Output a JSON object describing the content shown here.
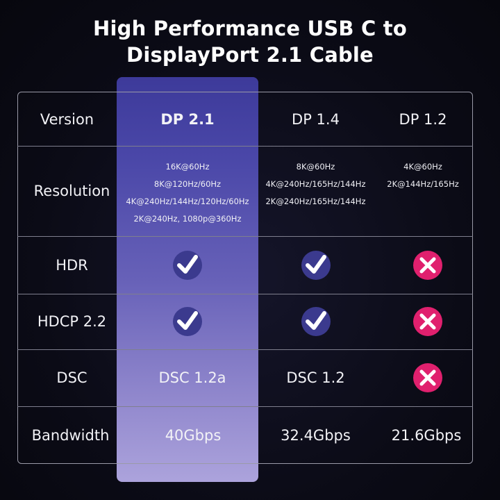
{
  "title": {
    "line1": "High Performance USB C to",
    "line2": "DisplayPort 2.1 Cable"
  },
  "columns": [
    "Version",
    "DP 2.1",
    "DP 1.4",
    "DP 1.2"
  ],
  "rows": {
    "resolution": {
      "label": "Resolution",
      "dp21": [
        "16K@60Hz",
        "8K@120Hz/60Hz",
        "4K@240Hz/144Hz/120Hz/60Hz",
        "2K@240Hz, 1080p@360Hz"
      ],
      "dp14": [
        "8K@60Hz",
        "4K@240Hz/165Hz/144Hz",
        "2K@240Hz/165Hz/144Hz"
      ],
      "dp12": [
        "4K@60Hz",
        "2K@144Hz/165Hz"
      ]
    },
    "hdr": {
      "label": "HDR",
      "dp21": "check-icon",
      "dp14": "check-icon",
      "dp12": "cross-icon"
    },
    "hdcp": {
      "label": "HDCP 2.2",
      "dp21": "check-icon",
      "dp14": "check-icon",
      "dp12": "cross-icon"
    },
    "dsc": {
      "label": "DSC",
      "dp21": "DSC 1.2a",
      "dp14": "DSC 1.2",
      "dp12": "cross-icon"
    },
    "bandwidth": {
      "label": "Bandwidth",
      "dp21": "40Gbps",
      "dp14": "32.4Gbps",
      "dp12": "21.6Gbps"
    }
  },
  "colors": {
    "highlight_top": "#3d3a9a",
    "highlight_bottom": "#aca3dc",
    "check": "#3b3a8e",
    "cross": "#e0206e"
  }
}
